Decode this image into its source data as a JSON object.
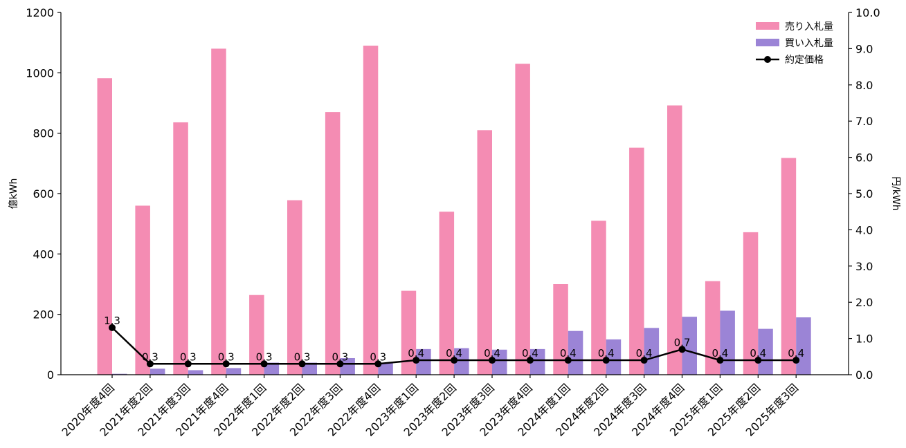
{
  "chart_data": {
    "type": "bar",
    "categories": [
      "2020年度4回",
      "2021年度2回",
      "2021年度3回",
      "2021年度4回",
      "2022年度1回",
      "2022年度2回",
      "2022年度3回",
      "2022年度4回",
      "2023年度1回",
      "2023年度2回",
      "2023年度3回",
      "2023年度4回",
      "2024年度1回",
      "2024年度2回",
      "2024年度3回",
      "2024年度4回",
      "2025年度1回",
      "2025年度2回",
      "2025年度3回"
    ],
    "series": [
      {
        "name": "売り入札量",
        "kind": "bar",
        "axis": "left",
        "color": "#f48cb3",
        "values": [
          982,
          560,
          836,
          1080,
          264,
          578,
          870,
          1090,
          278,
          540,
          810,
          1030,
          300,
          510,
          752,
          892,
          310,
          472,
          718
        ]
      },
      {
        "name": "買い入札量",
        "kind": "bar",
        "axis": "left",
        "color": "#9b84d6",
        "values": [
          3,
          20,
          15,
          22,
          40,
          40,
          55,
          40,
          85,
          88,
          83,
          85,
          145,
          117,
          155,
          192,
          212,
          152,
          190
        ]
      },
      {
        "name": "約定価格",
        "kind": "line",
        "axis": "right",
        "color": "#000000",
        "values": [
          1.3,
          0.3,
          0.3,
          0.3,
          0.3,
          0.3,
          0.3,
          0.3,
          0.4,
          0.4,
          0.4,
          0.4,
          0.4,
          0.4,
          0.4,
          0.7,
          0.4,
          0.4,
          0.4
        ],
        "labels": [
          "1.3",
          "0.3",
          "0.3",
          "0.3",
          "0.3",
          "0.3",
          "0.3",
          "0.3",
          "0.4",
          "0.4",
          "0.4",
          "0.4",
          "0.4",
          "0.4",
          "0.4",
          "0.7",
          "0.4",
          "0.4",
          "0.4"
        ]
      }
    ],
    "ylabel_left": "億kWh",
    "ylabel_right": "円/kWh",
    "ylim_left": [
      0,
      1200
    ],
    "ylim_right": [
      0,
      10
    ],
    "yticks_left": [
      "0",
      "200",
      "400",
      "600",
      "800",
      "1000",
      "1200"
    ],
    "yticks_right": [
      "0.0",
      "1.0",
      "2.0",
      "3.0",
      "4.0",
      "5.0",
      "6.0",
      "7.0",
      "8.0",
      "9.0",
      "10.0"
    ],
    "legend_position": "top-right",
    "grid": false
  }
}
